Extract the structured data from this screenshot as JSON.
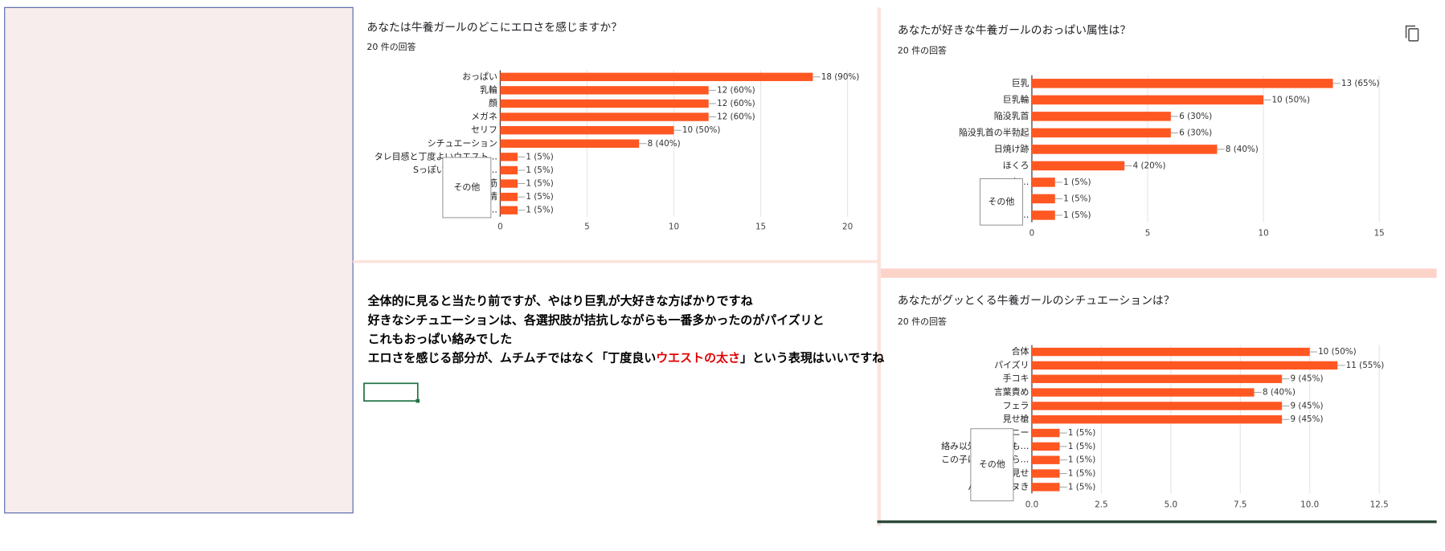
{
  "chart_data": [
    {
      "type": "hbar",
      "title": "あなたは牛養ガールのどこにエロさを感じますか？",
      "subtitle": "20 件の回答",
      "color": "#ff5722",
      "categories": [
        "おっぱい",
        "乳輪",
        "顔",
        "メガネ",
        "セリフ",
        "シチュエーション",
        "タレ目感と丁度よいウエスト…",
        "Sっぽい感じのと、…",
        "筋",
        "情",
        "モチょっと…"
      ],
      "values": [
        18,
        12,
        12,
        12,
        10,
        8,
        1,
        1,
        1,
        1,
        1
      ],
      "value_labels": [
        "18 (90%)",
        "12 (60%)",
        "12 (60%)",
        "12 (60%)",
        "10 (50%)",
        "8 (40%)",
        "1 (5%)",
        "1 (5%)",
        "1 (5%)",
        "1 (5%)",
        "1 (5%)"
      ],
      "xlim": [
        0,
        20
      ],
      "xticks": [
        0,
        5,
        10,
        15,
        20
      ],
      "grid": true,
      "tooltip": "その他"
    },
    {
      "type": "hbar",
      "title": "あなたが好きな牛養ガールのおっぱい属性は？",
      "subtitle": "20 件の回答",
      "color": "#ff5722",
      "categories": [
        "巨乳",
        "巨乳輪",
        "陥没乳首",
        "陥没乳首の半勃起",
        "日焼け跡",
        "ほくろ",
        "ロケ…",
        null,
        "け…"
      ],
      "values": [
        13,
        10,
        6,
        6,
        8,
        4,
        1,
        1,
        1
      ],
      "value_labels": [
        "13 (65%)",
        "10 (50%)",
        "6 (30%)",
        "6 (30%)",
        "8 (40%)",
        "4 (20%)",
        "1 (5%)",
        "1 (5%)",
        "1 (5%)"
      ],
      "xlim": [
        0,
        15
      ],
      "xticks": [
        0,
        5,
        10,
        15
      ],
      "grid": true,
      "tooltip": "その他"
    },
    {
      "type": "hbar",
      "title": "あなたがグッとくる牛養ガールのシチュエーションは？",
      "subtitle": "20 件の回答",
      "color": "#ff5722",
      "categories": [
        "合体",
        "パイズリ",
        "手コキ",
        "言葉責め",
        "フェラ",
        "見せ槍",
        "ニー",
        "絡み以外の一枚…も…",
        "この子は、こう…ら…",
        "見せ",
        "パイズリ…ヌき"
      ],
      "values": [
        10,
        11,
        9,
        8,
        9,
        9,
        1,
        1,
        1,
        1,
        1
      ],
      "value_labels": [
        "10 (50%)",
        "11 (55%)",
        "9 (45%)",
        "8 (40%)",
        "9 (45%)",
        "9 (45%)",
        "1 (5%)",
        "1 (5%)",
        "1 (5%)",
        "1 (5%)",
        "1 (5%)"
      ],
      "xlim": [
        0,
        12.5
      ],
      "xticks": [
        {
          "value": 0,
          "label": "0.0"
        },
        2.5,
        {
          "value": 5,
          "label": "5.0"
        },
        7.5,
        {
          "value": 10,
          "label": "10.0"
        },
        12.5
      ],
      "grid": true,
      "tooltip": "その他"
    }
  ],
  "comment": {
    "lines": [
      [
        "全体的に見ると当たり前ですが、やはり巨乳が大好きな方ばかりですね"
      ],
      [
        "好きなシチュエーションは、各選択肢が拮抗しながらも一番多かったのがパイズリと"
      ],
      [
        "これもおっぱい絡みでした"
      ],
      [
        "エロさを感じる部分が、ムチムチではなく「丁度良い",
        "ウエストの太さ",
        "」という表現はいいですね"
      ]
    ]
  }
}
